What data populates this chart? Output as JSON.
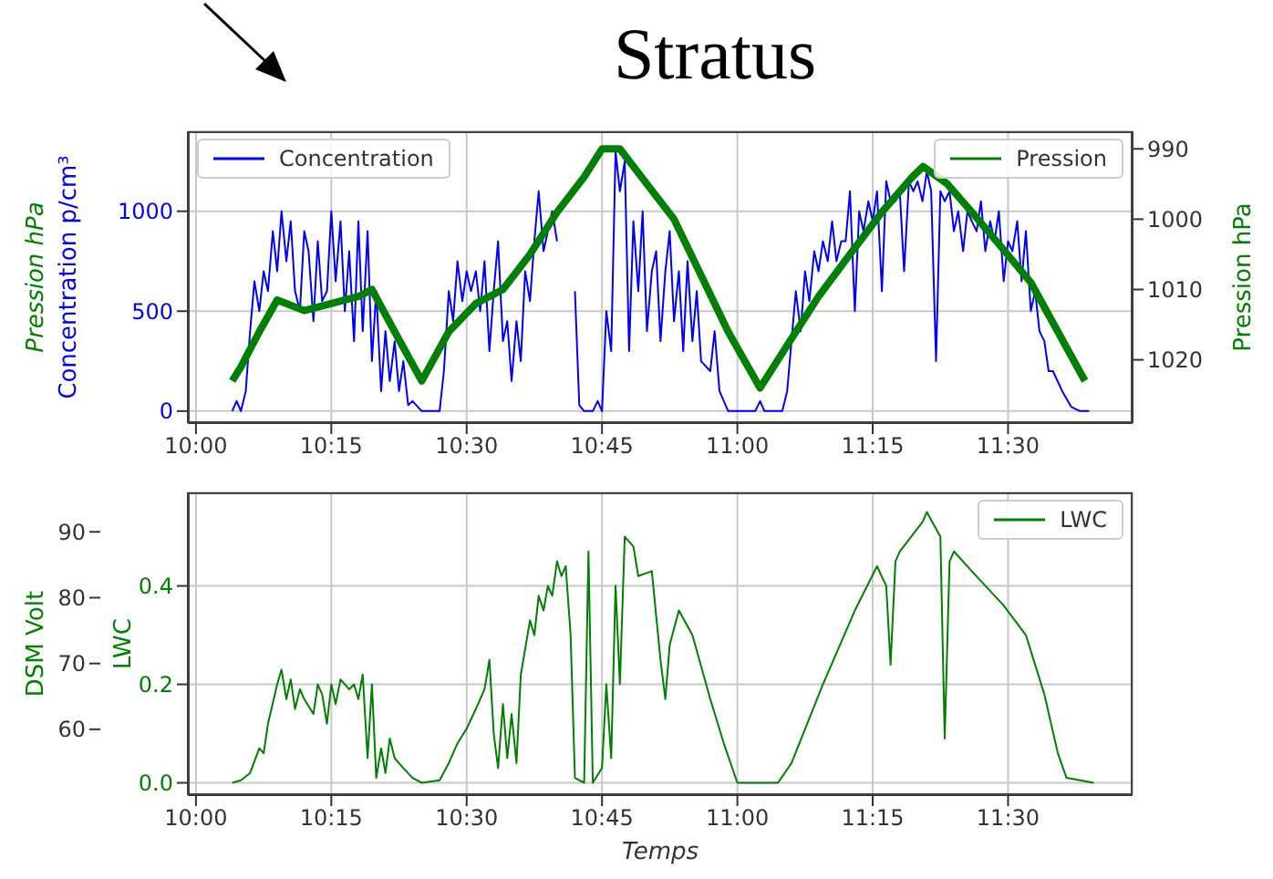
{
  "chart_data": [
    {
      "type": "line",
      "title": "Stratus",
      "ylabel": "Concentration p/cm³",
      "y2label": "Pression hPa",
      "annotations": [
        "Pression hPa"
      ],
      "xlim": [
        9.985,
        11.73
      ],
      "xticks": [
        {
          "value": 10,
          "label": "10:00"
        },
        {
          "value": 10.25,
          "label": "10:15"
        },
        {
          "value": 10.5,
          "label": "10:30"
        },
        {
          "value": 10.75,
          "label": "10:45"
        },
        {
          "value": 11,
          "label": "11:00"
        },
        {
          "value": 11.25,
          "label": "11:15"
        },
        {
          "value": 11.5,
          "label": "11:30"
        }
      ],
      "ylim": [
        -60,
        1400
      ],
      "yticks": [
        0,
        500,
        1000
      ],
      "y2lim": [
        1029,
        987.5
      ],
      "y2ticks": [
        990,
        1000,
        1010,
        1020
      ],
      "grid": true,
      "legend": "top",
      "series": [
        {
          "name": "Concentration",
          "color": "#0000ff",
          "x": [
            10.067,
            10.075,
            10.083,
            10.092,
            10.1,
            10.108,
            10.117,
            10.125,
            10.133,
            10.142,
            10.15,
            10.158,
            10.167,
            10.175,
            10.183,
            10.192,
            10.2,
            10.208,
            10.217,
            10.225,
            10.233,
            10.242,
            10.25,
            10.258,
            10.267,
            10.275,
            10.283,
            10.292,
            10.3,
            10.308,
            10.317,
            10.325,
            10.333,
            10.342,
            10.35,
            10.358,
            10.367,
            10.375,
            10.383,
            10.392,
            10.4,
            10.417,
            10.433,
            10.45,
            10.458,
            10.467,
            10.475,
            10.483,
            10.492,
            10.5,
            10.508,
            10.517,
            10.525,
            10.533,
            10.542,
            10.55,
            10.558,
            10.567,
            10.575,
            10.583,
            10.592,
            10.6,
            10.608,
            10.617,
            10.625,
            10.633,
            10.642,
            10.65,
            10.658,
            10.667,
            10.675,
            10.683,
            10.692,
            10.7,
            10.708,
            10.717,
            10.733,
            10.742,
            10.75,
            10.758,
            10.767,
            10.775,
            10.783,
            10.792,
            10.8,
            10.808,
            10.817,
            10.825,
            10.833,
            10.842,
            10.85,
            10.858,
            10.867,
            10.875,
            10.883,
            10.892,
            10.9,
            10.908,
            10.917,
            10.925,
            10.933,
            10.95,
            10.958,
            10.967,
            10.983,
            11,
            11.033,
            11.042,
            11.05,
            11.083,
            11.092,
            11.1,
            11.108,
            11.117,
            11.125,
            11.133,
            11.142,
            11.15,
            11.158,
            11.167,
            11.175,
            11.183,
            11.192,
            11.2,
            11.208,
            11.217,
            11.225,
            11.233,
            11.242,
            11.25,
            11.258,
            11.267,
            11.275,
            11.283,
            11.292,
            11.3,
            11.308,
            11.317,
            11.325,
            11.333,
            11.342,
            11.35,
            11.358,
            11.367,
            11.375,
            11.383,
            11.392,
            11.4,
            11.408,
            11.417,
            11.425,
            11.433,
            11.442,
            11.45,
            11.458,
            11.467,
            11.475,
            11.483,
            11.492,
            11.5,
            11.508,
            11.517,
            11.525,
            11.533,
            11.542,
            11.55,
            11.558,
            11.567,
            11.575,
            11.583,
            11.6,
            11.617,
            11.633,
            11.65
          ],
          "values": [
            0,
            50,
            0,
            100,
            400,
            650,
            500,
            700,
            600,
            900,
            700,
            1000,
            750,
            950,
            600,
            500,
            900,
            800,
            450,
            850,
            550,
            600,
            1000,
            650,
            950,
            500,
            800,
            350,
            950,
            400,
            900,
            250,
            600,
            100,
            400,
            150,
            350,
            100,
            250,
            30,
            50,
            0,
            0,
            0,
            200,
            600,
            450,
            750,
            550,
            700,
            600,
            700,
            500,
            750,
            300,
            600,
            850,
            350,
            450,
            150,
            450,
            250,
            700,
            550,
            850,
            1100,
            800,
            900,
            1000,
            850,
            null,
            null,
            null,
            600,
            30,
            0,
            0,
            50,
            0,
            500,
            300,
            1300,
            1100,
            1250,
            300,
            950,
            600,
            1000,
            400,
            700,
            800,
            350,
            700,
            900,
            450,
            700,
            300,
            750,
            350,
            600,
            250,
            200,
            400,
            100,
            0,
            0,
            0,
            50,
            0,
            0,
            100,
            350,
            600,
            400,
            700,
            550,
            800,
            700,
            850,
            750,
            950,
            750,
            850,
            850,
            1100,
            500,
            1000,
            900,
            1050,
            950,
            1100,
            600,
            1150,
            1050,
            1050,
            1100,
            700,
            1150,
            1100,
            1150,
            1050,
            1200,
            1100,
            250,
            1100,
            1050,
            1100,
            900,
            1000,
            800,
            1000,
            950,
            900,
            1050,
            800,
            950,
            850,
            1000,
            650,
            850,
            800,
            950,
            650,
            900,
            500,
            600,
            400,
            350,
            200,
            200,
            100,
            20,
            0,
            0
          ]
        },
        {
          "name": "Pression",
          "color": "#008000",
          "axis": "y2",
          "x": [
            10.067,
            10.083,
            10.117,
            10.15,
            10.2,
            10.25,
            10.3,
            10.325,
            10.367,
            10.417,
            10.467,
            10.517,
            10.567,
            10.617,
            10.667,
            10.717,
            10.75,
            10.783,
            10.833,
            10.883,
            10.933,
            10.983,
            11.042,
            11.1,
            11.15,
            11.208,
            11.267,
            11.323,
            11.343,
            11.388,
            11.433,
            11.488,
            11.542,
            11.592,
            11.642
          ],
          "values": [
            1023,
            1021,
            1016,
            1011.5,
            1013,
            1012,
            1011,
            1010,
            1016,
            1023,
            1016,
            1012,
            1010,
            1005,
            999,
            994,
            990,
            990,
            995,
            1000,
            1008,
            1016,
            1024,
            1017,
            1011,
            1005,
            999,
            994,
            992.5,
            995,
            999,
            1004,
            1009,
            1016,
            1023
          ]
        }
      ]
    },
    {
      "type": "line",
      "xlabel": "Temps",
      "ylabel": "LWC",
      "y2label": "DSM Volt",
      "xlim": [
        9.985,
        11.73
      ],
      "xticks": [
        {
          "value": 10,
          "label": "10:00"
        },
        {
          "value": 10.25,
          "label": "10:15"
        },
        {
          "value": 10.5,
          "label": "10:30"
        },
        {
          "value": 10.75,
          "label": "10:45"
        },
        {
          "value": 11,
          "label": "11:00"
        },
        {
          "value": 11.25,
          "label": "11:15"
        },
        {
          "value": 11.5,
          "label": "11:30"
        }
      ],
      "ylim": [
        -0.025,
        0.59
      ],
      "yticks": [
        {
          "value": 0,
          "label": "0.0"
        },
        0.2,
        0.4
      ],
      "y2lim": [
        50,
        96
      ],
      "y2ticks": [
        60,
        70,
        80,
        90
      ],
      "grid": true,
      "legend": "top right",
      "series": [
        {
          "name": "LWC",
          "color": "#008000",
          "x": [
            10.067,
            10.083,
            10.1,
            10.117,
            10.125,
            10.133,
            10.15,
            10.158,
            10.167,
            10.175,
            10.183,
            10.192,
            10.2,
            10.217,
            10.225,
            10.233,
            10.242,
            10.25,
            10.258,
            10.267,
            10.283,
            10.292,
            10.3,
            10.308,
            10.317,
            10.325,
            10.333,
            10.342,
            10.35,
            10.358,
            10.367,
            10.383,
            10.4,
            10.417,
            10.45,
            10.467,
            10.483,
            10.5,
            10.517,
            10.533,
            10.542,
            10.55,
            10.558,
            10.567,
            10.575,
            10.583,
            10.592,
            10.6,
            10.617,
            10.625,
            10.633,
            10.642,
            10.65,
            10.658,
            10.667,
            10.675,
            10.683,
            10.692,
            10.7,
            10.717,
            10.725,
            10.733,
            10.75,
            10.758,
            10.767,
            10.775,
            10.783,
            10.792,
            10.808,
            10.817,
            10.842,
            10.858,
            10.867,
            10.875,
            10.892,
            10.917,
            10.95,
            10.975,
            11,
            11.075,
            11.1,
            11.158,
            11.217,
            11.258,
            11.275,
            11.283,
            11.292,
            11.3,
            11.342,
            11.35,
            11.375,
            11.383,
            11.392,
            11.4,
            11.433,
            11.492,
            11.533,
            11.567,
            11.592,
            11.608,
            11.658
          ],
          "values": [
            0,
            0.005,
            0.02,
            0.07,
            0.06,
            0.12,
            0.2,
            0.23,
            0.17,
            0.21,
            0.15,
            0.19,
            0.17,
            0.14,
            0.2,
            0.18,
            0.12,
            0.2,
            0.16,
            0.21,
            0.19,
            0.2,
            0.17,
            0.22,
            0.05,
            0.2,
            0.01,
            0.07,
            0.02,
            0.09,
            0.05,
            0.03,
            0.01,
            0,
            0.005,
            0.04,
            0.08,
            0.11,
            0.15,
            0.19,
            0.25,
            0.1,
            0.03,
            0.16,
            0.05,
            0.14,
            0.04,
            0.22,
            0.33,
            0.3,
            0.38,
            0.35,
            0.4,
            0.38,
            0.45,
            0.42,
            0.44,
            0.3,
            0.01,
            0,
            0.47,
            0,
            0.03,
            0.2,
            0.05,
            0.4,
            0.2,
            0.5,
            0.48,
            0.42,
            0.43,
            0.25,
            0.17,
            0.28,
            0.35,
            0.3,
            0.17,
            0.08,
            0,
            0,
            0.04,
            0.2,
            0.35,
            0.44,
            0.4,
            0.24,
            0.45,
            0.47,
            0.53,
            0.55,
            0.5,
            0.09,
            0.45,
            0.47,
            0.43,
            0.36,
            0.3,
            0.18,
            0.06,
            0.01,
            0
          ]
        }
      ]
    }
  ]
}
